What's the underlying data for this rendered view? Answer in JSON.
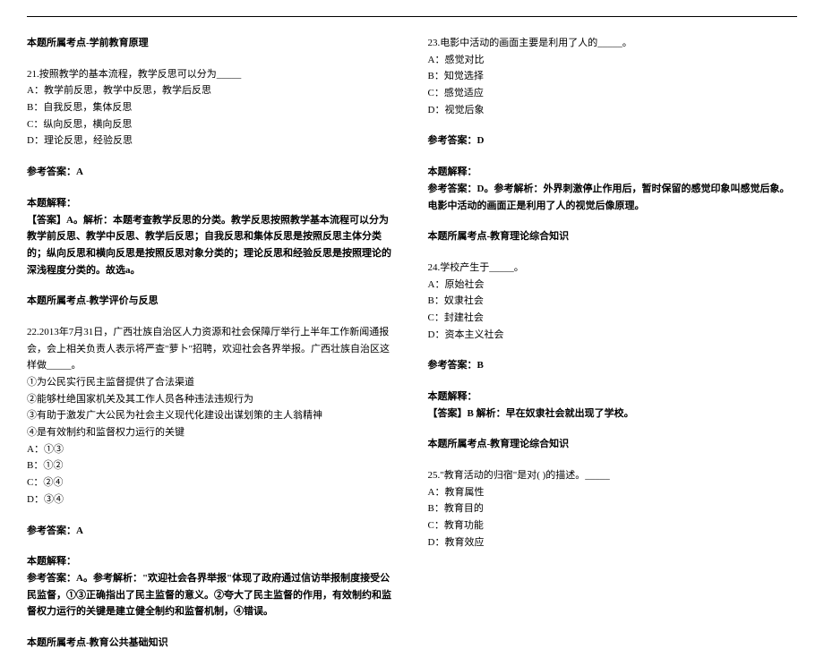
{
  "leftCol": {
    "topic1": "本题所属考点-学前教育原理",
    "q21": {
      "stem": "21.按照教学的基本流程，教学反思可以分为_____",
      "optA": "A：教学前反思，教学中反思，教学后反思",
      "optB": "B：自我反思，集体反思",
      "optC": "C：纵向反思，横向反思",
      "optD": "D：理论反思，经验反思",
      "answerLabel": "参考答案：A",
      "explainLabel": "本题解释：",
      "explain": "【答案】A。解析：本题考查教学反思的分类。教学反思按照教学基本流程可以分为教学前反思、教学中反思、教学后反思；自我反思和集体反思是按照反思主体分类的；纵向反思和横向反思是按照反思对象分类的；理论反思和经验反思是按照理论的深浅程度分类的。故选a。",
      "topic": "本题所属考点-教学评价与反思"
    },
    "q22": {
      "stem": "22.2013年7月31日，广西壮族自治区人力资源和社会保障厅举行上半年工作新闻通报会，会上相关负责人表示将严查\"萝卜\"招聘，欢迎社会各界举报。广西壮族自治区这样做_____。",
      "l1": "①为公民实行民主监督提供了合法渠道",
      "l2": "②能够杜绝国家机关及其工作人员各种违法违规行为",
      "l3": "③有助于激发广大公民为社会主义现代化建设出谋划策的主人翁精神",
      "l4": "④是有效制约和监督权力运行的关键",
      "optA": "A：①③",
      "optB": "B：①②",
      "optC": "C：②④",
      "optD": "D：③④",
      "answerLabel": "参考答案：A",
      "explainLabel": "本题解释：",
      "explain": "参考答案：A。参考解析：\"欢迎社会各界举报\"体现了政府通过信访举报制度接受公民监督，①③正确指出了民主监督的意义。②夸大了民主监督的作用，有效制约和监督权力运行的关键是建立健全制约和监督机制，④错误。",
      "topic": "本题所属考点-教育公共基础知识"
    }
  },
  "rightCol": {
    "q23": {
      "stem": "23.电影中活动的画面主要是利用了人的_____。",
      "optA": "A：感觉对比",
      "optB": "B：知觉选择",
      "optC": "C：感觉适应",
      "optD": "D：视觉后象",
      "answerLabel": "参考答案：D",
      "explainLabel": "本题解释：",
      "explain": "参考答案：D。参考解析：外界刺激停止作用后，暂时保留的感觉印象叫感觉后象。电影中活动的画面正是利用了人的视觉后像原理。",
      "topic": "本题所属考点-教育理论综合知识"
    },
    "q24": {
      "stem": "24.学校产生于_____。",
      "optA": "A：原始社会",
      "optB": "B：奴隶社会",
      "optC": "C：封建社会",
      "optD": "D：资本主义社会",
      "answerLabel": "参考答案：B",
      "explainLabel": "本题解释：",
      "explain": "【答案】B 解析：早在奴隶社会就出现了学校。",
      "topic": "本题所属考点-教育理论综合知识"
    },
    "q25": {
      "stem": "25.\"教育活动的归宿\"是对(      )的描述。_____",
      "optA": "A：教育属性",
      "optB": "B：教育目的",
      "optC": "C：教育功能",
      "optD": "D：教育效应"
    }
  }
}
